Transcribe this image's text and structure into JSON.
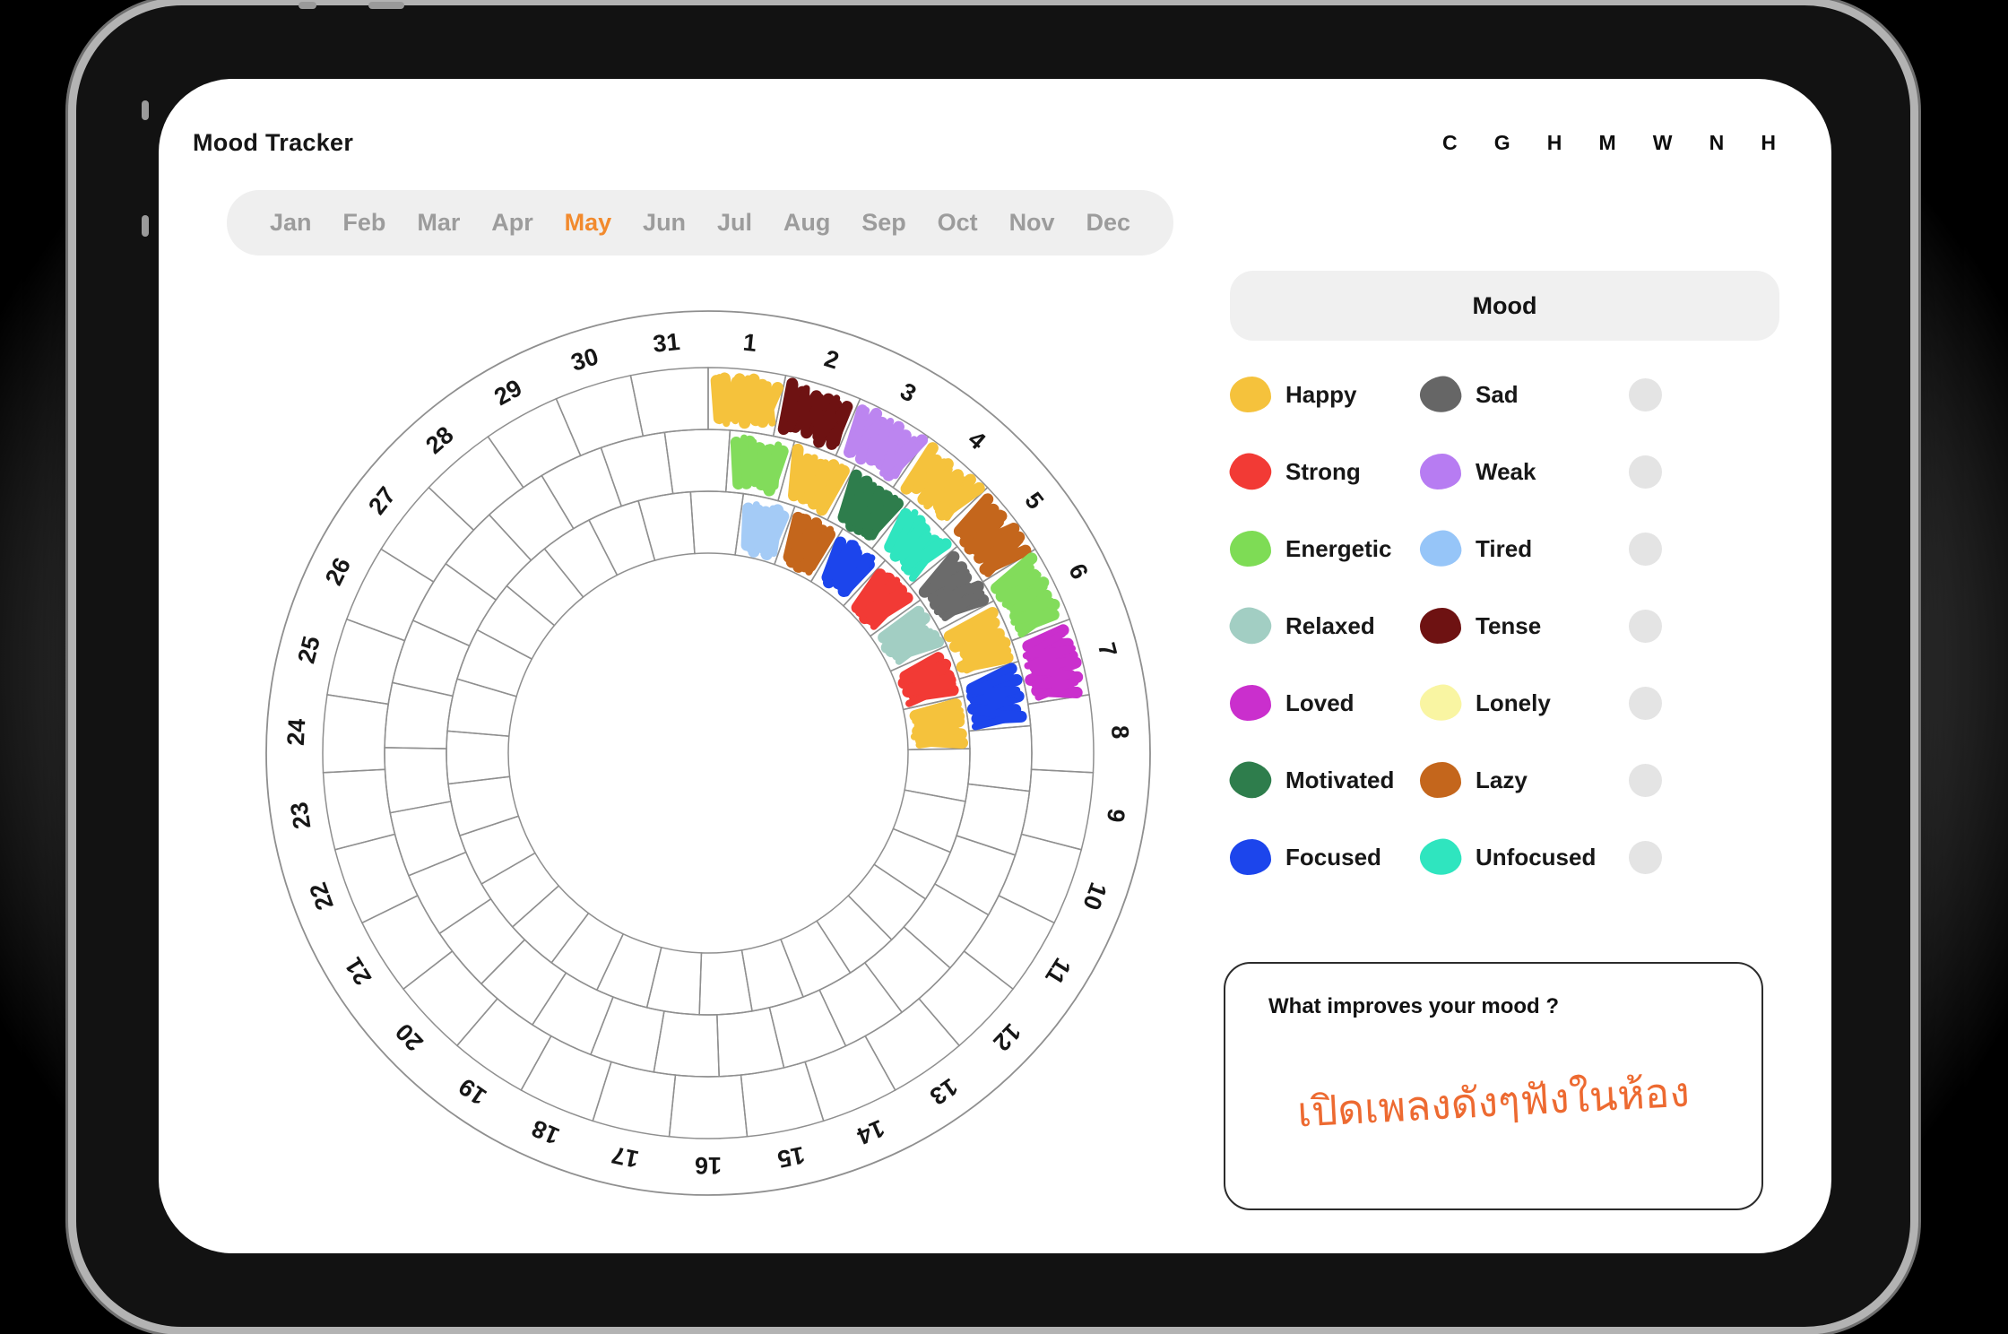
{
  "app": {
    "title": "Mood Tracker"
  },
  "topbar": {
    "letters": [
      "C",
      "G",
      "H",
      "M",
      "W",
      "N",
      "H"
    ]
  },
  "months": {
    "items": [
      "Jan",
      "Feb",
      "Mar",
      "Apr",
      "May",
      "Jun",
      "Jul",
      "Aug",
      "Sep",
      "Oct",
      "Nov",
      "Dec"
    ],
    "active": "May",
    "active_color": "#F28A2D"
  },
  "legend": {
    "title": "Mood",
    "rows": [
      {
        "left": {
          "label": "Happy",
          "color": "#F5C23C"
        },
        "right": {
          "label": "Sad",
          "color": "#666666"
        }
      },
      {
        "left": {
          "label": "Strong",
          "color": "#F23A35"
        },
        "right": {
          "label": "Weak",
          "color": "#B77CF2"
        }
      },
      {
        "left": {
          "label": "Energetic",
          "color": "#7EDC55"
        },
        "right": {
          "label": "Tired",
          "color": "#96C5F8"
        }
      },
      {
        "left": {
          "label": "Relaxed",
          "color": "#A2CEC3"
        },
        "right": {
          "label": "Tense",
          "color": "#6E1212"
        }
      },
      {
        "left": {
          "label": "Loved",
          "color": "#CA2FCD"
        },
        "right": {
          "label": "Lonely",
          "color": "#F9F5A2"
        }
      },
      {
        "left": {
          "label": "Motivated",
          "color": "#2E7D4C"
        },
        "right": {
          "label": "Lazy",
          "color": "#C4661C"
        }
      },
      {
        "left": {
          "label": "Focused",
          "color": "#1C45EC"
        },
        "right": {
          "label": "Unfocused",
          "color": "#2FE5BF"
        }
      }
    ]
  },
  "colors": {
    "Happy": "#F5C23C",
    "Sad": "#6B6B6B",
    "Strong": "#F23A35",
    "Weak": "#BC85F0",
    "Energetic": "#82DC5B",
    "Tired": "#A4CBF6",
    "Relaxed": "#A2CEC3",
    "Tense": "#6E1212",
    "Loved": "#CA2FCD",
    "Lonely": "#F9F5A2",
    "Motivated": "#2E7D4C",
    "Lazy": "#C4661C",
    "Focused": "#1C45EC",
    "Unfocused": "#2FE5BF"
  },
  "wheel": {
    "days": 31,
    "rings": 3,
    "day_labels": [
      "1",
      "2",
      "3",
      "4",
      "5",
      "6",
      "7",
      "8",
      "9",
      "10",
      "11",
      "12",
      "13",
      "14",
      "15",
      "16",
      "17",
      "18",
      "19",
      "20",
      "21",
      "22",
      "23",
      "24",
      "25",
      "26",
      "27",
      "28",
      "29",
      "30",
      "31"
    ],
    "entries": [
      {
        "day": 1,
        "moods": [
          "Happy",
          "Energetic",
          "Tired"
        ]
      },
      {
        "day": 2,
        "moods": [
          "Tense",
          "Happy",
          "Lazy"
        ]
      },
      {
        "day": 3,
        "moods": [
          "Weak",
          "Motivated",
          "Focused"
        ]
      },
      {
        "day": 4,
        "moods": [
          "Happy",
          "Unfocused",
          "Strong"
        ]
      },
      {
        "day": 5,
        "moods": [
          "Lazy",
          "Sad",
          "Relaxed"
        ]
      },
      {
        "day": 6,
        "moods": [
          "Energetic",
          "Happy",
          "Strong"
        ]
      },
      {
        "day": 7,
        "moods": [
          "Loved",
          "Focused",
          "Happy"
        ]
      }
    ]
  },
  "note": {
    "question": "What improves your mood ?",
    "answer": "เปิดเพลงดังๆฟังในห้อง",
    "answer_color": "#ED6A31"
  }
}
